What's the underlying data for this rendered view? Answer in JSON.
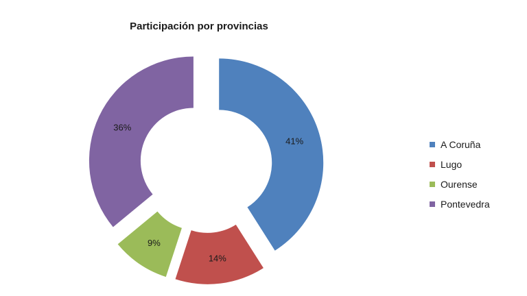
{
  "chart_data": {
    "type": "pie",
    "variant": "exploded-donut",
    "title": "Participación por provincias",
    "categories": [
      "A Coruña",
      "Lugo",
      "Ourense",
      "Pontevedra"
    ],
    "values": [
      41,
      14,
      9,
      36
    ],
    "labels": [
      "41%",
      "14%",
      "9%",
      "36%"
    ],
    "colors": [
      "#4f81bd",
      "#c0504d",
      "#9bbb59",
      "#8064a2"
    ],
    "legend": "right"
  }
}
